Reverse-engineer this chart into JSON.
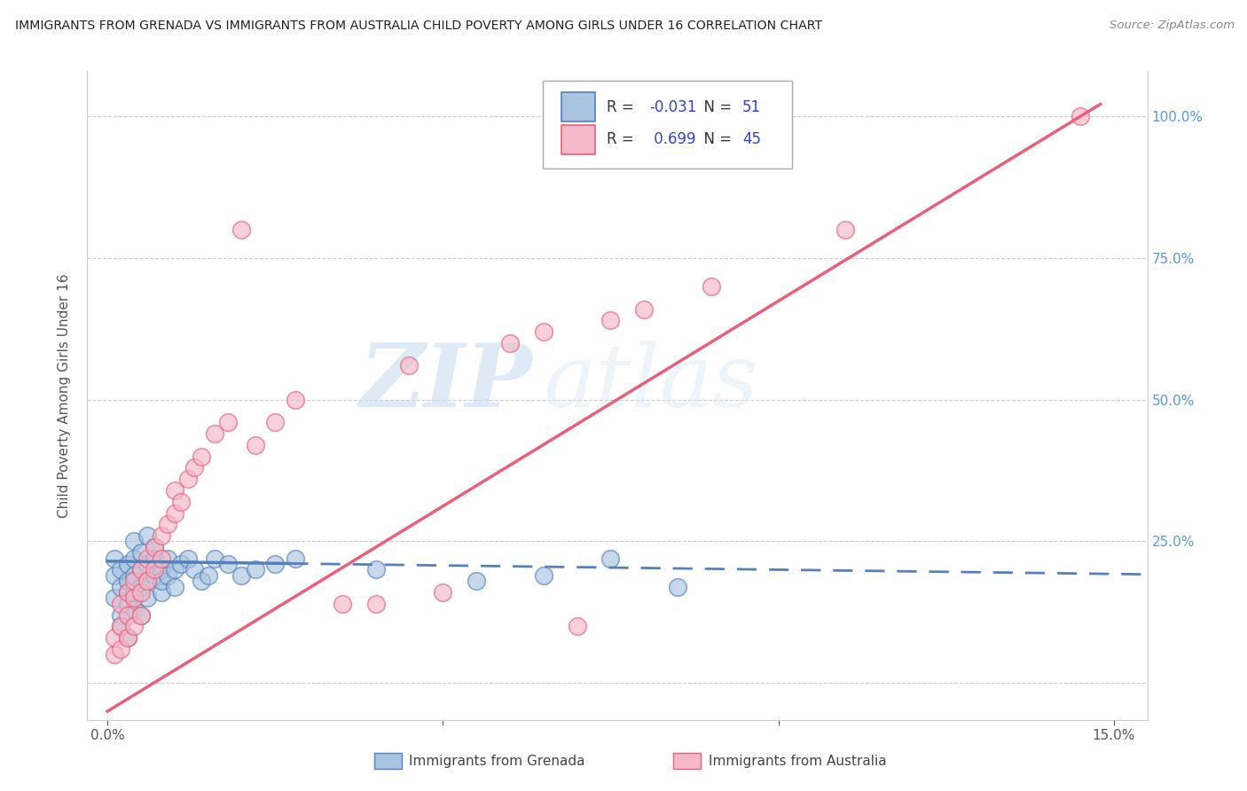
{
  "title": "IMMIGRANTS FROM GRENADA VS IMMIGRANTS FROM AUSTRALIA CHILD POVERTY AMONG GIRLS UNDER 16 CORRELATION CHART",
  "source": "Source: ZipAtlas.com",
  "ylabel": "Child Poverty Among Girls Under 16",
  "xlim": [
    0.0,
    0.15
  ],
  "ylim": [
    -0.05,
    1.08
  ],
  "legend_grenada_R": "-0.031",
  "legend_grenada_N": "51",
  "legend_australia_R": "0.699",
  "legend_australia_N": "45",
  "color_grenada": "#a8c4e0",
  "color_australia": "#f4b8c8",
  "color_grenada_line": "#5580bb",
  "color_australia_line": "#e8607a",
  "color_r_value": "#3344cc",
  "watermark_zip": "ZIP",
  "watermark_atlas": "atlas",
  "background_color": "#ffffff",
  "grenada_x": [
    0.001,
    0.001,
    0.001,
    0.002,
    0.002,
    0.002,
    0.002,
    0.003,
    0.003,
    0.003,
    0.003,
    0.003,
    0.004,
    0.004,
    0.004,
    0.004,
    0.004,
    0.005,
    0.005,
    0.005,
    0.005,
    0.006,
    0.006,
    0.006,
    0.006,
    0.007,
    0.007,
    0.007,
    0.008,
    0.008,
    0.008,
    0.009,
    0.009,
    0.01,
    0.01,
    0.011,
    0.012,
    0.013,
    0.014,
    0.015,
    0.016,
    0.018,
    0.02,
    0.022,
    0.025,
    0.028,
    0.04,
    0.055,
    0.065,
    0.075,
    0.085
  ],
  "grenada_y": [
    0.19,
    0.22,
    0.15,
    0.12,
    0.17,
    0.2,
    0.1,
    0.16,
    0.21,
    0.18,
    0.08,
    0.14,
    0.25,
    0.19,
    0.13,
    0.22,
    0.16,
    0.23,
    0.17,
    0.2,
    0.12,
    0.26,
    0.21,
    0.18,
    0.15,
    0.24,
    0.19,
    0.22,
    0.2,
    0.16,
    0.18,
    0.22,
    0.19,
    0.2,
    0.17,
    0.21,
    0.22,
    0.2,
    0.18,
    0.19,
    0.22,
    0.21,
    0.19,
    0.2,
    0.21,
    0.22,
    0.2,
    0.18,
    0.19,
    0.22,
    0.17
  ],
  "australia_x": [
    0.001,
    0.001,
    0.002,
    0.002,
    0.002,
    0.003,
    0.003,
    0.003,
    0.004,
    0.004,
    0.004,
    0.005,
    0.005,
    0.005,
    0.006,
    0.006,
    0.007,
    0.007,
    0.008,
    0.008,
    0.009,
    0.01,
    0.01,
    0.011,
    0.012,
    0.013,
    0.014,
    0.016,
    0.018,
    0.02,
    0.022,
    0.025,
    0.028,
    0.035,
    0.04,
    0.045,
    0.05,
    0.06,
    0.065,
    0.07,
    0.075,
    0.08,
    0.09,
    0.11,
    0.145
  ],
  "australia_y": [
    0.05,
    0.08,
    0.06,
    0.1,
    0.14,
    0.08,
    0.12,
    0.16,
    0.1,
    0.15,
    0.18,
    0.12,
    0.16,
    0.2,
    0.18,
    0.22,
    0.2,
    0.24,
    0.22,
    0.26,
    0.28,
    0.3,
    0.34,
    0.32,
    0.36,
    0.38,
    0.4,
    0.44,
    0.46,
    0.8,
    0.42,
    0.46,
    0.5,
    0.14,
    0.14,
    0.56,
    0.16,
    0.6,
    0.62,
    0.1,
    0.64,
    0.66,
    0.7,
    0.8,
    1.0
  ]
}
